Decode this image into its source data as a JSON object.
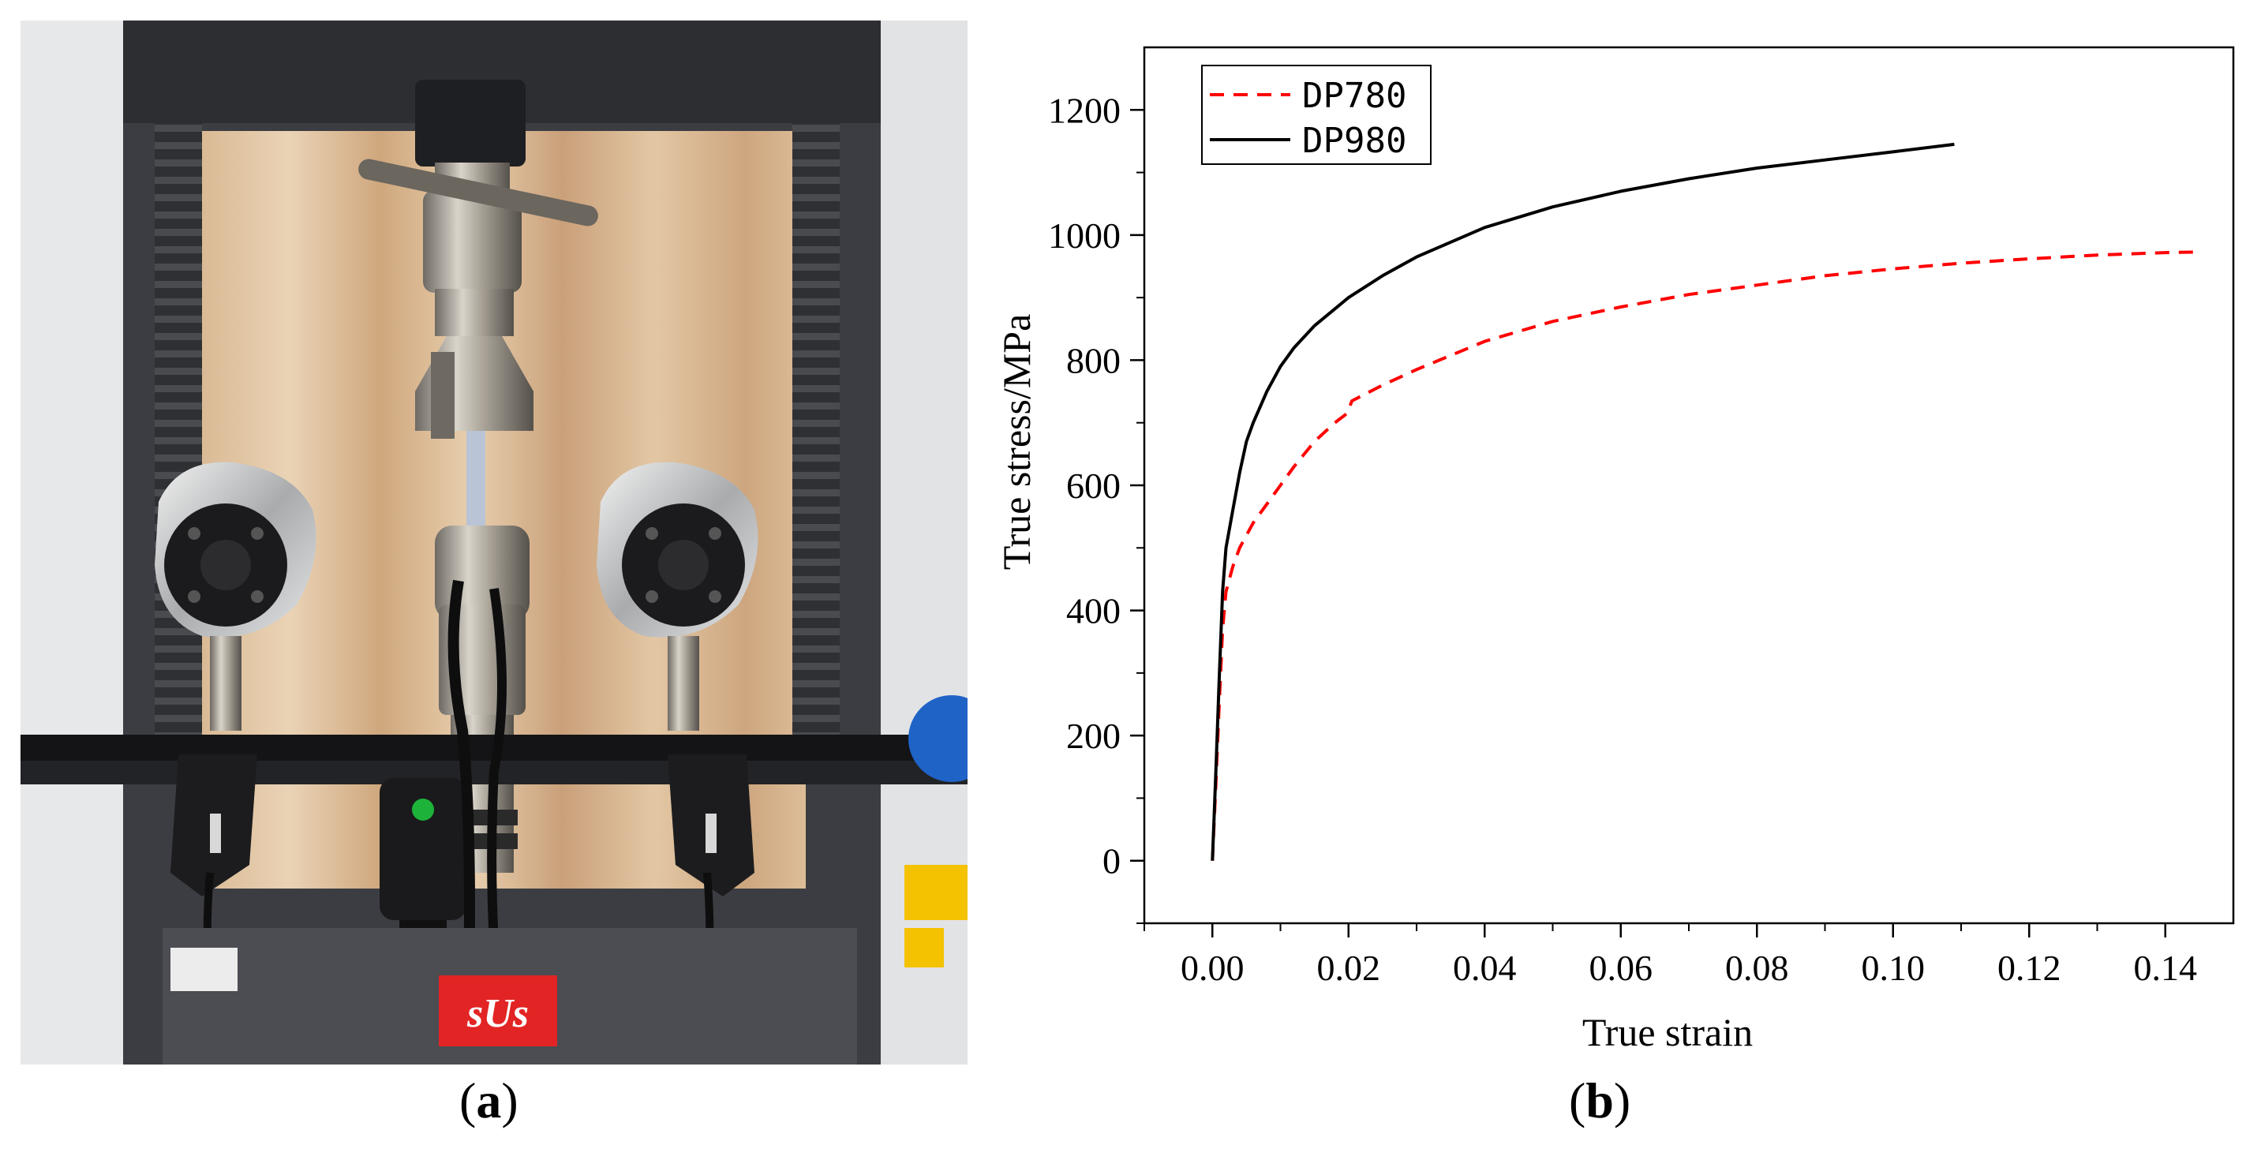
{
  "figure": {
    "panel_a_caption": "(a)",
    "panel_a_letter": "a",
    "panel_b_caption": "(b)",
    "panel_b_letter": "b",
    "photo_labels": {
      "brand_plate": "sUs"
    }
  },
  "chart_data": {
    "type": "line",
    "title": "",
    "xlabel": "True strain",
    "ylabel": "True stress/MPa",
    "xlim": [
      -0.01,
      0.15
    ],
    "ylim": [
      -100,
      1300
    ],
    "x_ticks": [
      "0.00",
      "0.02",
      "0.04",
      "0.06",
      "0.08",
      "0.10",
      "0.12",
      "0.14"
    ],
    "x_tick_values": [
      0,
      0.02,
      0.04,
      0.06,
      0.08,
      0.1,
      0.12,
      0.14
    ],
    "y_ticks": [
      "0",
      "200",
      "400",
      "600",
      "800",
      "1000",
      "1200"
    ],
    "y_tick_values": [
      0,
      200,
      400,
      600,
      800,
      1000,
      1200
    ],
    "grid": false,
    "legend_position": "top-left",
    "series": [
      {
        "name": "DP780",
        "color": "#ff0000",
        "dash": "dashed",
        "x": [
          0,
          0.0005,
          0.001,
          0.0015,
          0.002,
          0.003,
          0.004,
          0.006,
          0.008,
          0.01,
          0.012,
          0.015,
          0.018,
          0.0198,
          0.0205,
          0.025,
          0.03,
          0.04,
          0.05,
          0.06,
          0.07,
          0.08,
          0.09,
          0.1,
          0.11,
          0.12,
          0.13,
          0.14,
          0.145
        ],
        "y": [
          0,
          120,
          250,
          370,
          430,
          470,
          500,
          540,
          570,
          600,
          630,
          670,
          700,
          715,
          735,
          760,
          785,
          830,
          862,
          885,
          905,
          920,
          935,
          946,
          955,
          962,
          968,
          972,
          973
        ]
      },
      {
        "name": "DP980",
        "color": "#000000",
        "dash": "solid",
        "x": [
          0,
          0.0005,
          0.001,
          0.0015,
          0.002,
          0.003,
          0.004,
          0.005,
          0.006,
          0.008,
          0.01,
          0.012,
          0.015,
          0.02,
          0.025,
          0.03,
          0.04,
          0.05,
          0.06,
          0.07,
          0.08,
          0.09,
          0.1,
          0.109
        ],
        "y": [
          0,
          140,
          290,
          430,
          500,
          560,
          620,
          670,
          700,
          750,
          790,
          820,
          855,
          900,
          935,
          965,
          1012,
          1045,
          1070,
          1090,
          1107,
          1120,
          1133,
          1145
        ]
      }
    ]
  }
}
